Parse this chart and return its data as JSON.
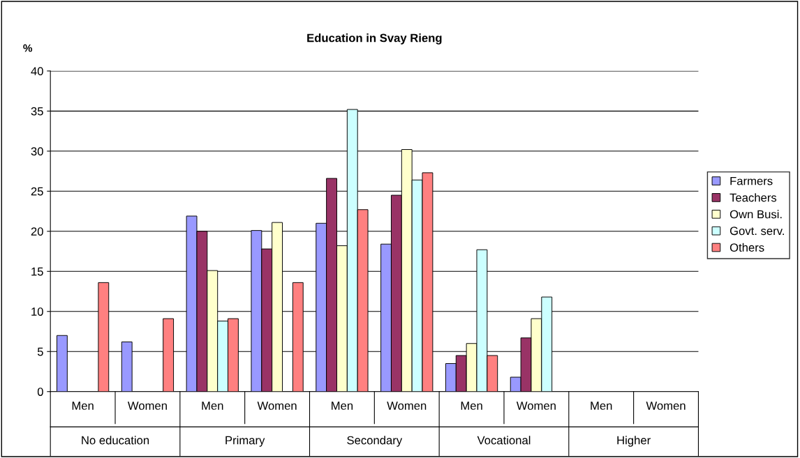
{
  "chart_data": {
    "type": "bar",
    "title": "Education in Svay Rieng",
    "ylabel": "%",
    "categories": [
      "Men",
      "Women",
      "Men",
      "Women",
      "Men",
      "Women",
      "Men",
      "Women",
      "Men",
      "Women"
    ],
    "annotations": [
      "No education",
      "Primary",
      "Secondary",
      "Vocational",
      "Higher"
    ],
    "series": [
      {
        "name": "Farmers",
        "color": "#9999ff",
        "values": [
          7.0,
          6.2,
          21.9,
          20.1,
          21.0,
          18.4,
          3.5,
          1.8,
          null,
          null
        ]
      },
      {
        "name": "Teachers",
        "color": "#993366",
        "values": [
          null,
          null,
          20.0,
          17.8,
          26.6,
          24.5,
          4.5,
          6.7,
          null,
          null
        ]
      },
      {
        "name": "Own Busi.",
        "color": "#ffffcc",
        "values": [
          null,
          null,
          15.1,
          21.1,
          18.2,
          30.2,
          6.0,
          9.1,
          null,
          null
        ]
      },
      {
        "name": "Govt. serv.",
        "color": "#ccffff",
        "values": [
          null,
          null,
          8.8,
          null,
          35.2,
          26.4,
          17.7,
          11.8,
          null,
          null
        ]
      },
      {
        "name": "Others",
        "color": "#ff8080",
        "values": [
          13.6,
          9.1,
          9.1,
          13.6,
          22.7,
          27.3,
          4.5,
          null,
          null,
          null
        ]
      }
    ],
    "ylim": [
      0,
      40
    ],
    "yticks": [
      0,
      5,
      10,
      15,
      20,
      25,
      30,
      35,
      40
    ],
    "grid": "y",
    "legend": "right"
  }
}
